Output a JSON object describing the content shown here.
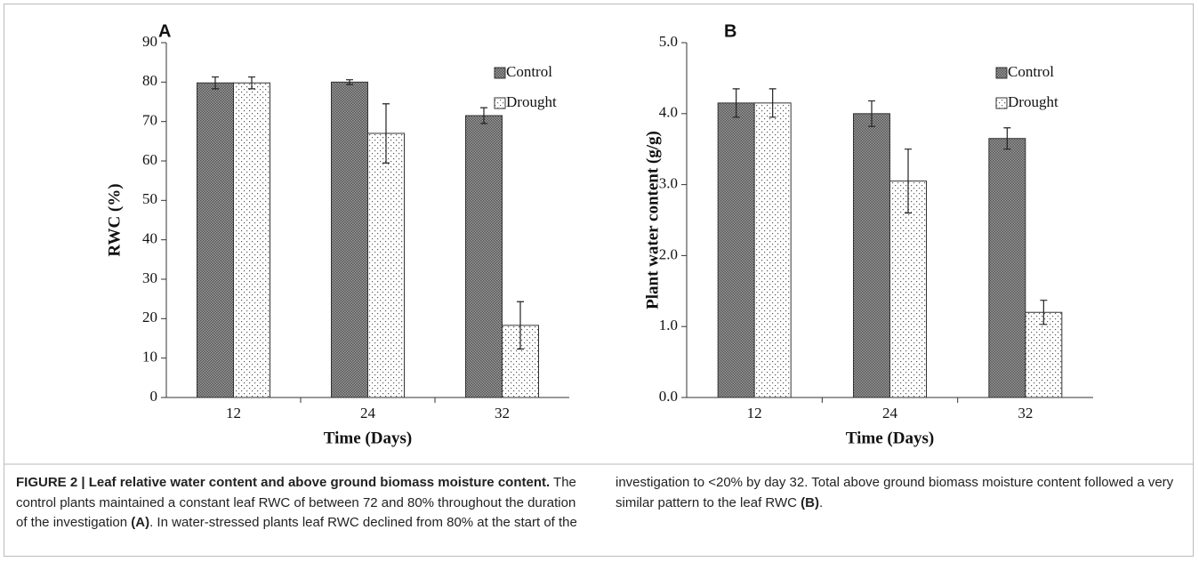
{
  "chart_data": [
    {
      "type": "bar",
      "panel": "A",
      "ylabel": "RWC (%)",
      "xlabel": "Time (Days)",
      "categories": [
        "12",
        "24",
        "32"
      ],
      "series": [
        {
          "name": "Control",
          "color": "#7a7a7a",
          "pattern": "dense",
          "values": [
            79.8,
            80,
            71.5
          ],
          "errors": [
            1.5,
            0.6,
            2
          ]
        },
        {
          "name": "Drought",
          "color": "#ffffff",
          "pattern": "dots",
          "values": [
            79.8,
            67,
            18.3
          ],
          "errors": [
            1.5,
            7.5,
            6
          ]
        }
      ],
      "ylim": [
        0,
        90
      ],
      "yticks": [
        0,
        10,
        20,
        30,
        40,
        50,
        60,
        70,
        80,
        90
      ],
      "grid": false
    },
    {
      "type": "bar",
      "panel": "B",
      "ylabel": "Plant water content (g/g)",
      "xlabel": "Time (Days)",
      "categories": [
        "12",
        "24",
        "32"
      ],
      "series": [
        {
          "name": "Control",
          "color": "#7a7a7a",
          "pattern": "dense",
          "values": [
            4.15,
            4.0,
            3.65
          ],
          "errors": [
            0.2,
            0.18,
            0.15
          ]
        },
        {
          "name": "Drought",
          "color": "#ffffff",
          "pattern": "dots",
          "values": [
            4.15,
            3.05,
            1.2
          ],
          "errors": [
            0.2,
            0.45,
            0.17
          ]
        }
      ],
      "ylim": [
        0,
        5
      ],
      "yticks": [
        {
          "value": 0,
          "label": "0.0"
        },
        {
          "value": 1,
          "label": "1.0"
        },
        {
          "value": 2,
          "label": "2.0"
        },
        {
          "value": 3,
          "label": "3.0"
        },
        {
          "value": 4,
          "label": "4.0"
        },
        {
          "value": 5,
          "label": "5.0"
        }
      ],
      "grid": false
    }
  ],
  "caption": {
    "title": "FIGURE 2 | Leaf relative water content and above ground biomass moisture content.",
    "text": [
      " The control plants maintained a constant leaf RWC of between 72 and 80% throughout the duration of the investigation ",
      "(A)",
      ". In water-stressed plants leaf RWC declined from 80% at the start of the investigation to <20% by day 32. Total above ground biomass moisture content followed a very similar pattern to the leaf RWC ",
      "(B)",
      "."
    ]
  }
}
